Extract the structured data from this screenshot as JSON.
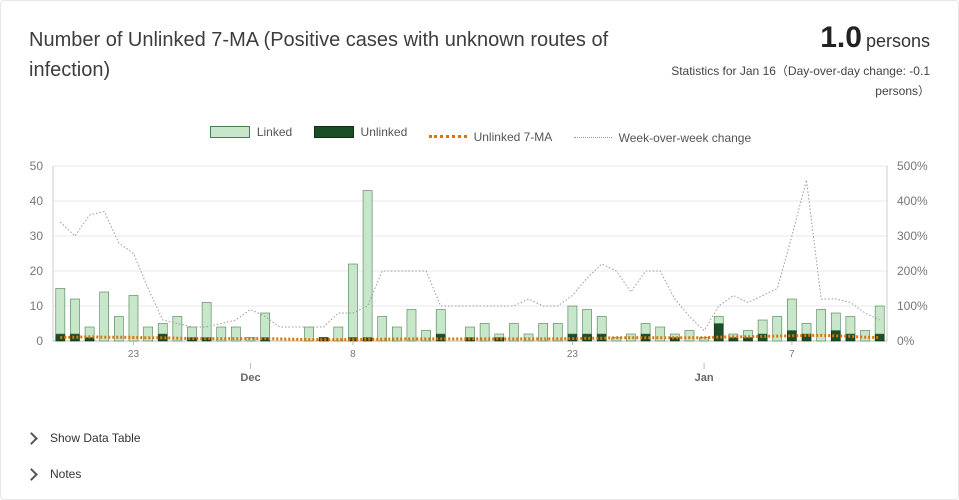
{
  "header": {
    "title": "Number of Unlinked 7-MA (Positive cases with unknown routes of infection)",
    "value": "1.0",
    "unit": "persons",
    "note": "Statistics for Jan 16（Day-over-day change: -0.1 persons）"
  },
  "legend": {
    "linked": "Linked",
    "unlinked": "Unlinked",
    "ma": "Unlinked 7-MA",
    "wow": "Week-over-week change"
  },
  "colors": {
    "linked_fill": "#c8e6c9",
    "linked_stroke": "#4a7f4e",
    "unlinked_fill": "#1b4d27",
    "ma_line": "#d97706",
    "wow_line": "#999999"
  },
  "chart_data": {
    "type": "bar",
    "x_start": "Nov 18",
    "x_end": "Jan 16",
    "x_tick_labels": [
      "23",
      "8",
      "23",
      "7"
    ],
    "x_tick_day_index": [
      5,
      20,
      35,
      50
    ],
    "month_labels": [
      "Dec",
      "Jan"
    ],
    "month_day_index": [
      13,
      44
    ],
    "y_left_ticks": [
      "0",
      "10",
      "20",
      "30",
      "40",
      "50"
    ],
    "y_left_lim": [
      0,
      50
    ],
    "y_right_ticks": [
      "0%",
      "100%",
      "200%",
      "300%",
      "400%",
      "500%"
    ],
    "y_right_lim": [
      0,
      500
    ],
    "grid": true,
    "legend_position": "top-center",
    "series": [
      {
        "name": "Linked",
        "type": "bar",
        "axis": "left",
        "values": [
          13,
          10,
          3,
          14,
          7,
          13,
          4,
          3,
          7,
          3,
          10,
          4,
          4,
          1,
          7,
          0,
          0,
          4,
          0,
          4,
          21,
          42,
          7,
          4,
          9,
          3,
          7,
          0,
          3,
          5,
          1,
          5,
          2,
          5,
          5,
          8,
          7,
          5,
          1,
          2,
          3,
          4,
          1,
          3,
          1,
          2,
          1,
          2,
          4,
          7,
          9,
          3,
          9,
          5,
          5,
          3,
          8
        ]
      },
      {
        "name": "Unlinked",
        "type": "bar",
        "axis": "left",
        "values": [
          2,
          2,
          1,
          0,
          0,
          0,
          0,
          2,
          0,
          1,
          1,
          0,
          0,
          0,
          1,
          0,
          0,
          0,
          1,
          0,
          1,
          1,
          0,
          0,
          0,
          0,
          2,
          0,
          1,
          0,
          1,
          0,
          0,
          0,
          0,
          2,
          2,
          2,
          0,
          0,
          2,
          0,
          1,
          0,
          0,
          5,
          1,
          1,
          2,
          0,
          3,
          2,
          0,
          3,
          2,
          0,
          2
        ]
      },
      {
        "name": "Unlinked 7-MA",
        "type": "line",
        "axis": "left",
        "values": [
          1.0,
          1.1,
          1.2,
          1.1,
          1.1,
          1.0,
          0.9,
          0.9,
          0.8,
          0.7,
          0.7,
          0.7,
          0.7,
          0.7,
          0.7,
          0.6,
          0.5,
          0.4,
          0.4,
          0.4,
          0.4,
          0.5,
          0.5,
          0.6,
          0.6,
          0.6,
          0.6,
          0.6,
          0.6,
          0.6,
          0.6,
          0.6,
          0.6,
          0.6,
          0.6,
          0.7,
          0.8,
          0.8,
          0.9,
          0.9,
          0.9,
          0.9,
          0.9,
          0.9,
          0.9,
          1.1,
          1.2,
          1.2,
          1.3,
          1.4,
          1.5,
          1.6,
          1.6,
          1.5,
          1.3,
          1.1,
          1.0
        ]
      },
      {
        "name": "Week-over-week change",
        "type": "line",
        "axis": "right",
        "values": [
          340,
          300,
          360,
          370,
          280,
          250,
          150,
          60,
          50,
          40,
          40,
          50,
          60,
          90,
          70,
          40,
          40,
          40,
          40,
          80,
          80,
          100,
          200,
          200,
          200,
          200,
          100,
          100,
          100,
          100,
          100,
          100,
          120,
          100,
          100,
          130,
          180,
          220,
          200,
          140,
          200,
          200,
          120,
          70,
          30,
          100,
          130,
          110,
          130,
          150,
          300,
          460,
          120,
          120,
          110,
          80,
          60
        ]
      }
    ]
  },
  "controls": {
    "show_table": "Show Data Table",
    "notes": "Notes"
  }
}
